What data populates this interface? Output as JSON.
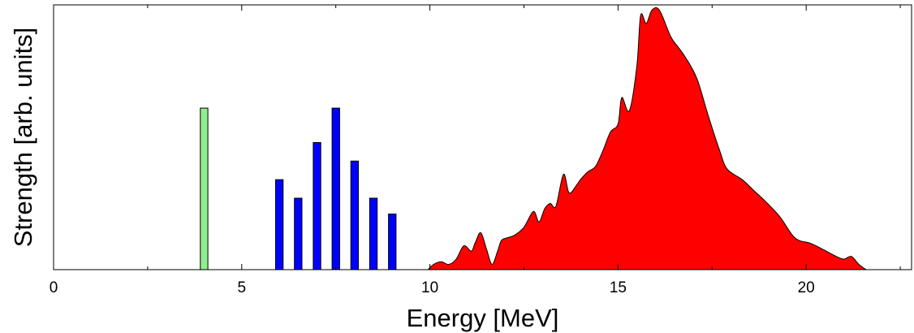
{
  "chart_data": {
    "type": "bar",
    "title": "",
    "xlabel": "Energy [MeV]",
    "ylabel": "Strength [arb. units]",
    "xlim": [
      0,
      22.8
    ],
    "ylim": [
      0,
      1.0
    ],
    "xticks": [
      0,
      5,
      10,
      15,
      20
    ],
    "yticks_labeled": false,
    "grid": false,
    "legend": "none",
    "series": [
      {
        "kind": "bar",
        "color": "#90ee90",
        "bar_width": 0.2,
        "points": [
          {
            "x": 4.0,
            "y": 0.61
          }
        ]
      },
      {
        "kind": "bar",
        "color": "#0000ff",
        "bar_width": 0.2,
        "points": [
          {
            "x": 6.0,
            "y": 0.34
          },
          {
            "x": 6.5,
            "y": 0.27
          },
          {
            "x": 7.0,
            "y": 0.48
          },
          {
            "x": 7.5,
            "y": 0.61
          },
          {
            "x": 8.0,
            "y": 0.41
          },
          {
            "x": 8.5,
            "y": 0.27
          },
          {
            "x": 9.0,
            "y": 0.21
          }
        ]
      },
      {
        "kind": "area",
        "color": "#ff0000",
        "x": [
          9.95,
          10.1,
          10.3,
          10.5,
          10.7,
          10.9,
          11.1,
          11.2,
          11.35,
          11.5,
          11.65,
          11.8,
          11.9,
          12.05,
          12.25,
          12.5,
          12.75,
          12.9,
          13.05,
          13.2,
          13.35,
          13.55,
          13.7,
          13.9,
          14.0,
          14.2,
          14.4,
          14.6,
          14.8,
          15.0,
          15.1,
          15.3,
          15.5,
          15.6,
          15.75,
          15.9,
          16.1,
          16.4,
          16.6,
          16.8,
          17.1,
          17.4,
          17.7,
          17.9,
          18.3,
          18.6,
          18.9,
          19.3,
          19.7,
          20.1,
          20.4,
          20.8,
          21.0,
          21.2,
          21.4,
          21.6,
          21.7
        ],
        "y": [
          0.0,
          0.02,
          0.03,
          0.02,
          0.04,
          0.09,
          0.07,
          0.1,
          0.14,
          0.08,
          0.02,
          0.07,
          0.11,
          0.12,
          0.13,
          0.16,
          0.22,
          0.18,
          0.23,
          0.25,
          0.24,
          0.36,
          0.29,
          0.32,
          0.34,
          0.37,
          0.39,
          0.45,
          0.52,
          0.55,
          0.65,
          0.6,
          0.77,
          0.96,
          0.93,
          0.98,
          0.98,
          0.88,
          0.84,
          0.8,
          0.72,
          0.58,
          0.45,
          0.38,
          0.34,
          0.3,
          0.26,
          0.2,
          0.12,
          0.1,
          0.08,
          0.05,
          0.04,
          0.05,
          0.02,
          0.0,
          0.0
        ]
      }
    ]
  }
}
